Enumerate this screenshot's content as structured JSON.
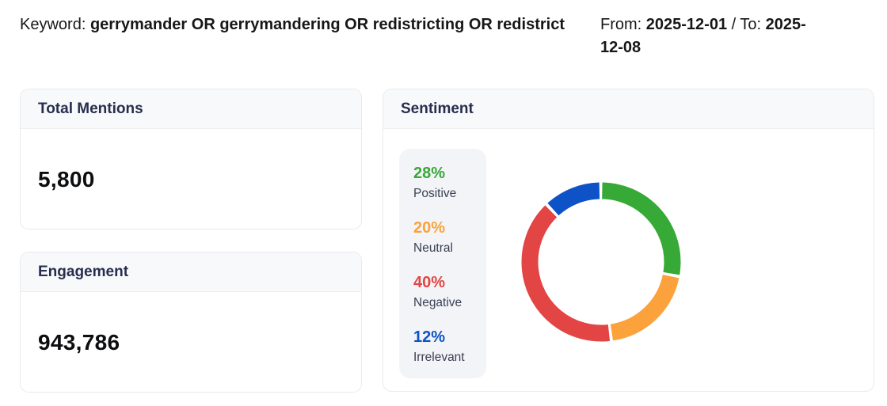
{
  "header": {
    "keyword": {
      "label": "Keyword:",
      "value": "gerrymander OR gerrymandering OR redistricting OR redistrict"
    },
    "date_range": {
      "from_label": "From:",
      "from_value": "2025-12-01",
      "separator": "/",
      "to_label": "To:",
      "to_value": "2025-12-08",
      "to_value_lines": [
        "2025-",
        "12-08"
      ]
    }
  },
  "cards": {
    "total_mentions": {
      "title": "Total Mentions",
      "value": "5,800"
    },
    "engagement": {
      "title": "Engagement",
      "value": "943,786"
    },
    "sentiment": {
      "title": "Sentiment"
    }
  },
  "chart_data": {
    "type": "pie",
    "variant": "donut",
    "title": "Sentiment",
    "categories": [
      "Positive",
      "Neutral",
      "Negative",
      "Irrelevant"
    ],
    "values": [
      28,
      20,
      40,
      12
    ],
    "unit": "%",
    "colors": [
      "#36A936",
      "#FCA23C",
      "#E34444",
      "#0D53C7"
    ],
    "legend_position": "left",
    "start_angle": "top",
    "direction": "clockwise",
    "cutout_percent": 78,
    "segment_gap_deg": 2.6
  }
}
